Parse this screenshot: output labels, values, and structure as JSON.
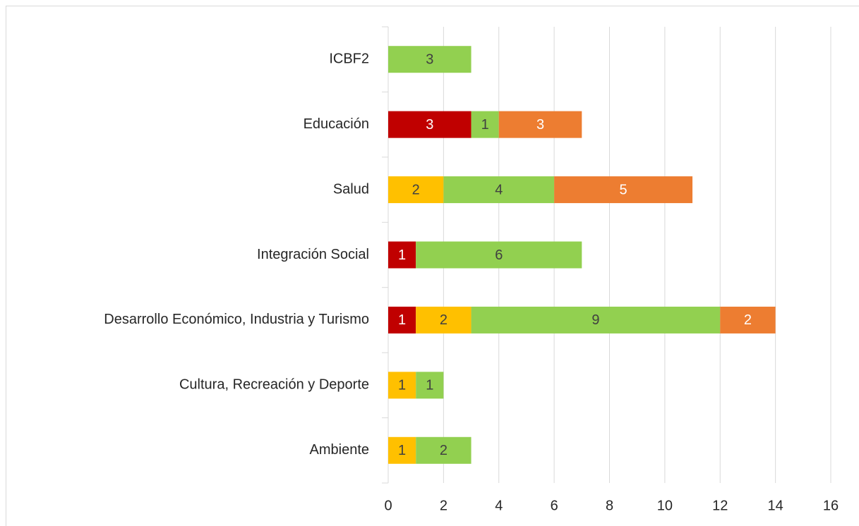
{
  "chart_data": {
    "type": "stacked-barh",
    "categories": [
      "ICBF2",
      "Educación",
      "Salud",
      "Integración Social",
      "Desarrollo Económico, Industria y Turismo",
      "Cultura, Recreación y Deporte",
      "Ambiente"
    ],
    "series": [
      {
        "color": "#c00000",
        "label_color": "#ffffff",
        "values": [
          null,
          3,
          null,
          1,
          1,
          null,
          null
        ]
      },
      {
        "color": "#ffc000",
        "label_color": "#404040",
        "values": [
          null,
          null,
          2,
          null,
          2,
          1,
          1
        ]
      },
      {
        "color": "#92d050",
        "label_color": "#404040",
        "values": [
          3,
          1,
          4,
          6,
          9,
          1,
          2
        ]
      },
      {
        "color": "#ed7d31",
        "label_color": "#ffffff",
        "values": [
          null,
          3,
          5,
          null,
          2,
          null,
          null
        ]
      }
    ],
    "xlim": [
      0,
      16
    ],
    "xticks": [
      0,
      2,
      4,
      6,
      8,
      10,
      12,
      14,
      16
    ],
    "grid": true
  }
}
